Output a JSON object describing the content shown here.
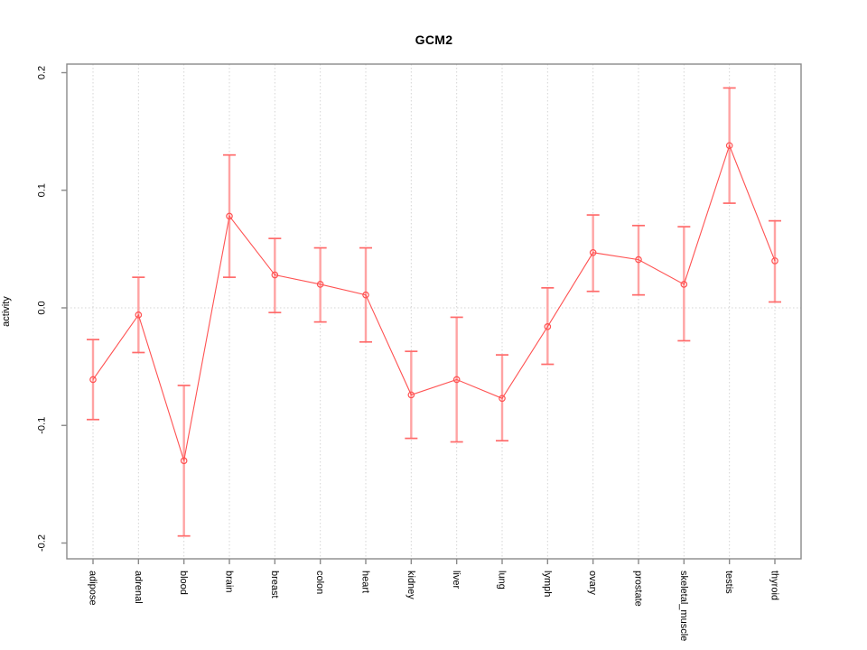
{
  "figure": {
    "background": "#ffffff"
  },
  "chart_data": {
    "type": "line",
    "subtype": "points-with-error-bars",
    "title": "GCM2",
    "xlabel": "",
    "ylabel": "activity",
    "legend": "none",
    "grid": {
      "vertical": "per-category-dotted",
      "horizontal_dotted_at": 0
    },
    "ylim": [
      -0.213,
      0.207
    ],
    "yticks": [
      -0.2,
      -0.1,
      0.0,
      0.1,
      0.2
    ],
    "ytick_labels": [
      "-0.2",
      "-0.1",
      "0.0",
      "0.1",
      "0.2"
    ],
    "categories": [
      "adipose",
      "adrenal",
      "blood",
      "brain",
      "breast",
      "colon",
      "heart",
      "kidney",
      "liver",
      "lung",
      "lymph",
      "ovary",
      "prostate",
      "skeletal_muscle",
      "testis",
      "thyroid"
    ],
    "series": [
      {
        "name": "GCM2 activity",
        "values": [
          -0.061,
          -0.006,
          -0.13,
          0.078,
          0.028,
          0.02,
          0.011,
          -0.074,
          -0.061,
          -0.077,
          -0.016,
          0.047,
          0.041,
          0.02,
          0.138,
          0.04
        ],
        "lower": [
          -0.095,
          -0.038,
          -0.194,
          0.026,
          -0.004,
          -0.012,
          -0.029,
          -0.111,
          -0.114,
          -0.113,
          -0.048,
          0.014,
          0.011,
          -0.028,
          0.089,
          0.005
        ],
        "upper": [
          -0.027,
          0.026,
          -0.066,
          0.13,
          0.059,
          0.051,
          0.051,
          -0.037,
          -0.008,
          -0.04,
          0.017,
          0.079,
          0.07,
          0.069,
          0.187,
          0.074
        ]
      }
    ],
    "colors": {
      "point": "#ff5252",
      "line": "#ff5252",
      "error_bar": "#ffa3a3",
      "error_cap": "#ff6b6b",
      "axis": "#8a8a8a",
      "gridline": "#d4d4d4",
      "text": "#000000"
    }
  }
}
